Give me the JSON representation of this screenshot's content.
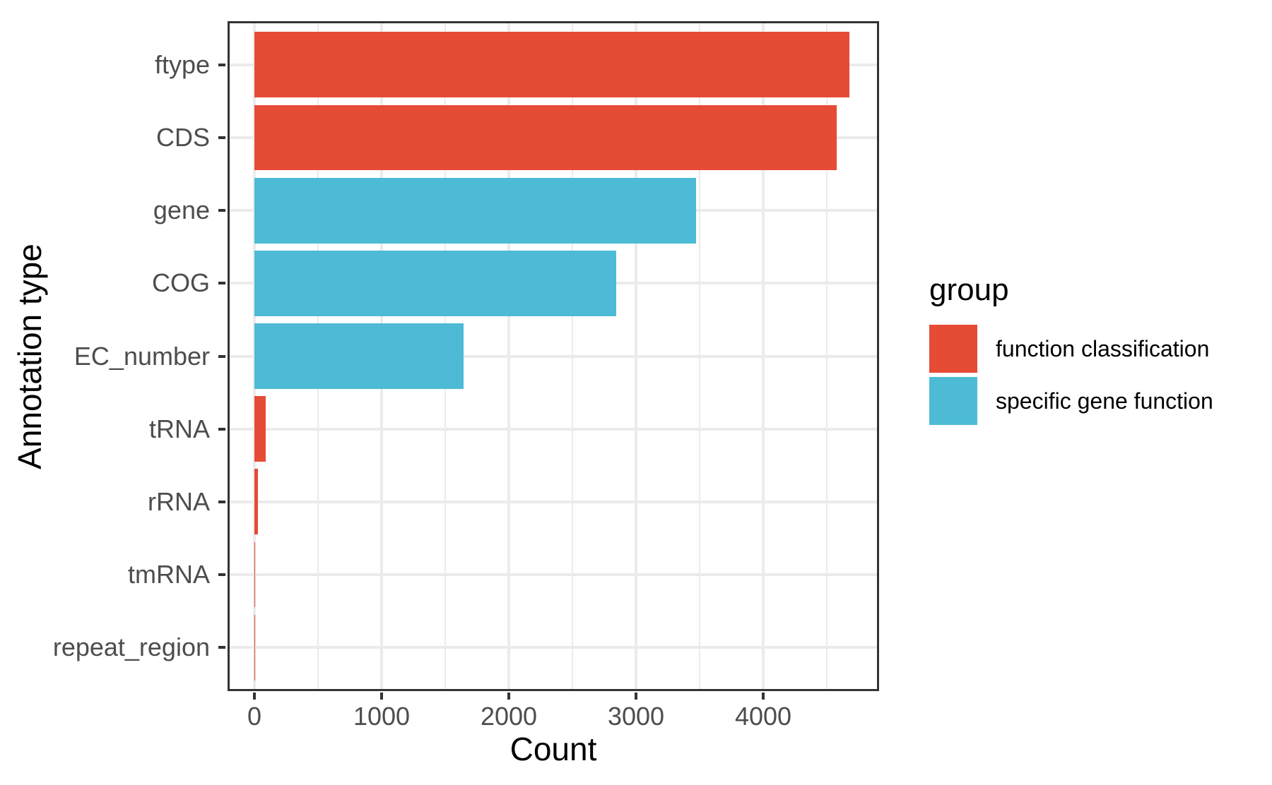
{
  "chart_data": {
    "type": "bar",
    "orientation": "horizontal",
    "title": "",
    "xlabel": "Count",
    "ylabel": "Annotation type",
    "categories": [
      "ftype",
      "CDS",
      "gene",
      "COG",
      "EC_number",
      "tRNA",
      "rRNA",
      "tmRNA",
      "repeat_region"
    ],
    "values": [
      4680,
      4575,
      3470,
      2845,
      1645,
      88,
      26,
      1,
      1
    ],
    "groups": [
      "function classification",
      "function classification",
      "specific gene function",
      "specific gene function",
      "specific gene function",
      "function classification",
      "function classification",
      "function classification",
      "function classification"
    ],
    "group_colors": {
      "function classification": "#E64B35",
      "specific gene function": "#4DBBD5"
    },
    "x_ticks": [
      0,
      1000,
      2000,
      3000,
      4000
    ],
    "x_tick_labels": [
      "0",
      "1000",
      "2000",
      "3000",
      "4000"
    ],
    "x_minor_ticks": [
      500,
      1500,
      2500,
      3500,
      4500
    ],
    "xlim": [
      -211,
      4911
    ],
    "grid": true,
    "legend": {
      "title": "group",
      "position": "right",
      "items": [
        {
          "label": "function classification",
          "color": "#E64B35"
        },
        {
          "label": "specific gene function",
          "color": "#4DBBD5"
        }
      ]
    },
    "panel": {
      "background": "#FFFFFF",
      "border_color": "#333333",
      "gridline_color": "#EBEBEB"
    }
  }
}
